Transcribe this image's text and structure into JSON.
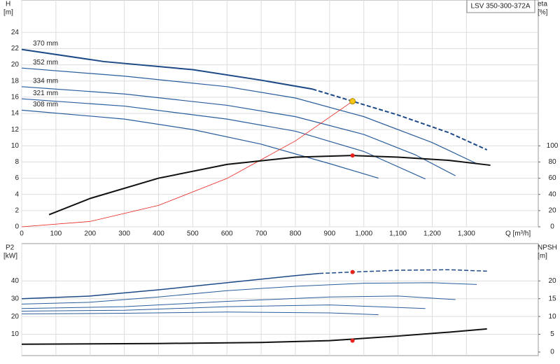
{
  "model_label": "LSV 350-300-372A",
  "chart_data": [
    {
      "type": "line",
      "grid": true,
      "x_label": "Q [m³/h]",
      "xlim": [
        0,
        1510
      ],
      "xticks": [
        0,
        100,
        200,
        300,
        400,
        500,
        600,
        700,
        800,
        900,
        {
          "value": 1000,
          "label": "1,000"
        },
        {
          "value": 1100,
          "label": "1,100"
        },
        {
          "value": 1200,
          "label": "1,200"
        },
        {
          "value": 1300,
          "label": "1,300"
        }
      ],
      "y_label": "H",
      "y_unit": "[m]",
      "ylim": [
        0,
        28
      ],
      "yticks": [
        0,
        2,
        4,
        6,
        8,
        10,
        12,
        14,
        16,
        18,
        20,
        22,
        24
      ],
      "y2_label": "eta",
      "y2_unit": "[%]",
      "y2lim": [
        0,
        280
      ],
      "y2ticks": [
        0,
        20,
        40,
        60,
        80,
        100
      ],
      "series": [
        {
          "name": "370 mm",
          "color": "#1d4a86",
          "width": 2,
          "x": [
            0,
            240,
            500,
            700,
            850
          ],
          "values": [
            21.9,
            20.4,
            19.4,
            18.1,
            17.0
          ]
        },
        {
          "color": "#1d4a86",
          "width": 2,
          "dash": true,
          "x": [
            850,
            967,
            1100,
            1250,
            1360
          ],
          "values": [
            17.0,
            15.5,
            13.8,
            11.6,
            9.5
          ]
        },
        {
          "name": "352 mm",
          "color": "#2a5d9c",
          "width": 1.2,
          "x": [
            0,
            300,
            600,
            800,
            1000,
            1200,
            1330
          ],
          "values": [
            19.6,
            18.6,
            17.3,
            15.9,
            13.6,
            10.4,
            7.8
          ]
        },
        {
          "name": "334 mm",
          "color": "#2a5d9c",
          "width": 1.2,
          "x": [
            0,
            300,
            600,
            800,
            1000,
            1150,
            1268
          ],
          "values": [
            17.3,
            16.4,
            15.0,
            13.6,
            11.4,
            8.9,
            6.3
          ]
        },
        {
          "name": "321 mm",
          "color": "#2a5d9c",
          "width": 1.2,
          "x": [
            0,
            300,
            600,
            800,
            1000,
            1180
          ],
          "values": [
            15.8,
            14.9,
            13.3,
            11.8,
            9.3,
            5.9
          ]
        },
        {
          "name": "308 mm",
          "color": "#2a5d9c",
          "width": 1.2,
          "x": [
            0,
            300,
            500,
            700,
            900,
            1043
          ],
          "values": [
            14.4,
            13.3,
            12.0,
            10.2,
            7.8,
            6.0
          ]
        },
        {
          "color": "#e8211b",
          "width": 0.8,
          "x": [
            0,
            200,
            400,
            600,
            800,
            967
          ],
          "values": [
            0,
            0.66,
            2.65,
            5.97,
            10.6,
            15.5
          ]
        },
        {
          "color": "#111111",
          "width": 2,
          "axis": "y2",
          "x": [
            80,
            200,
            400,
            600,
            800,
            967,
            1100,
            1250,
            1370
          ],
          "values": [
            15,
            35,
            60,
            77,
            86,
            88,
            86,
            82,
            76
          ]
        }
      ],
      "points": [
        {
          "x": 967,
          "value": 15.5,
          "color": "#f5c518"
        },
        {
          "x": 967,
          "value": 88,
          "color": "#e8211b",
          "axis": "y2"
        }
      ]
    },
    {
      "type": "line",
      "grid": true,
      "xlim": [
        0,
        1510
      ],
      "xticks": [
        0,
        100,
        200,
        300,
        400,
        500,
        600,
        700,
        800,
        900,
        1000,
        1100,
        1200,
        1300
      ],
      "y_label": "P2",
      "y_unit": "[kW]",
      "ylim": [
        -2,
        61
      ],
      "yticks": [
        10,
        20,
        30,
        40
      ],
      "y2_label": "NPSH",
      "y2_unit": "[m]",
      "y2lim": [
        -1,
        30.5
      ],
      "y2ticks": [
        0,
        5,
        10,
        15,
        20
      ],
      "series": [
        {
          "color": "#1d4a86",
          "width": 1.5,
          "x": [
            0,
            200,
            400,
            600,
            800,
            870
          ],
          "values": [
            30,
            31.5,
            35,
            39,
            43,
            44.2
          ]
        },
        {
          "color": "#1d4a86",
          "width": 1.5,
          "dash": true,
          "x": [
            870,
            967,
            1100,
            1250,
            1360
          ],
          "values": [
            44.2,
            45,
            46,
            46.3,
            45.5
          ]
        },
        {
          "color": "#2a5d9c",
          "width": 1,
          "x": [
            0,
            200,
            400,
            600,
            800,
            1000,
            1200,
            1330
          ],
          "values": [
            27,
            28,
            31,
            34.5,
            37,
            38.7,
            39,
            38
          ]
        },
        {
          "color": "#2a5d9c",
          "width": 1,
          "x": [
            0,
            300,
            600,
            900,
            1100,
            1268
          ],
          "values": [
            24.5,
            25.5,
            28.5,
            31,
            31.5,
            29.5
          ]
        },
        {
          "color": "#2a5d9c",
          "width": 1,
          "x": [
            0,
            300,
            600,
            900,
            1180
          ],
          "values": [
            23,
            23.5,
            25.5,
            26.5,
            24.5
          ]
        },
        {
          "color": "#2a5d9c",
          "width": 1,
          "x": [
            0,
            300,
            600,
            900,
            1043
          ],
          "values": [
            21.5,
            21.8,
            22.5,
            22,
            21
          ]
        },
        {
          "color": "#111111",
          "width": 2,
          "axis": "y2",
          "x": [
            0,
            400,
            700,
            900,
            1100,
            1250,
            1360
          ],
          "values": [
            2.2,
            2.4,
            2.7,
            3.2,
            4.5,
            5.6,
            6.5
          ]
        }
      ],
      "points": [
        {
          "x": 967,
          "value": 45,
          "color": "#e8211b"
        },
        {
          "x": 967,
          "value": 3.2,
          "color": "#e8211b",
          "axis": "y2"
        }
      ]
    }
  ]
}
